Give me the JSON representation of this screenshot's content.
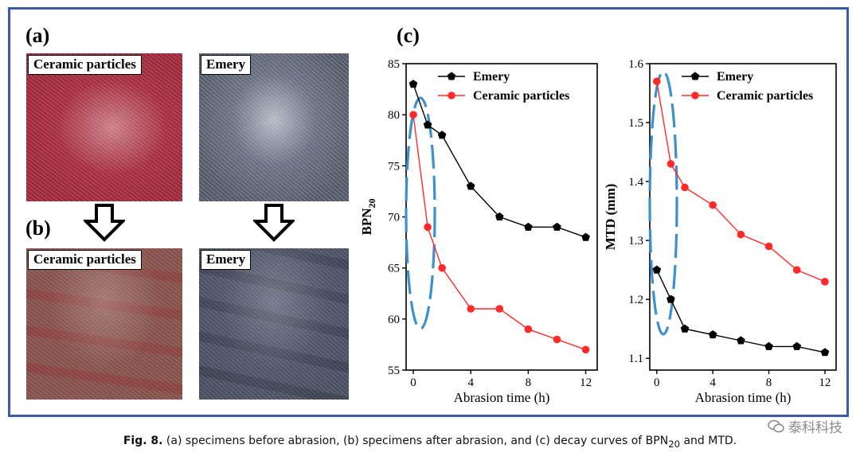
{
  "panels": {
    "a_label": "(a)",
    "b_label": "(b)",
    "c_label": "(c)"
  },
  "photos": {
    "before_ceramic_label": "Ceramic particles",
    "before_emery_label": "Emery",
    "after_ceramic_label": "Ceramic particles",
    "after_emery_label": "Emery"
  },
  "colors": {
    "frame": "#3b5aa8",
    "emery_series": "#000000",
    "ceramic_series": "#ff2a2a",
    "ellipse": "#3d8fd0"
  },
  "caption": {
    "fig": "Fig. 8.",
    "text_before": " (a) specimens before abrasion, (b) specimens after abrasion, and (c) decay curves of BPN",
    "sub": "20",
    "text_after": " and MTD."
  },
  "watermark": "泰科科技",
  "chart_data": [
    {
      "type": "line",
      "xlabel": "Abrasion time (h)",
      "ylabel": "BPN",
      "ylabel_sub": "20",
      "xlim": [
        -0.5,
        12.8
      ],
      "ylim": [
        55,
        85
      ],
      "xticks": [
        0,
        4,
        8,
        12
      ],
      "yticks": [
        55,
        60,
        65,
        70,
        75,
        80,
        85
      ],
      "legend_position": "top-right",
      "series": [
        {
          "name": "Emery",
          "x": [
            0,
            1,
            2,
            4,
            6,
            8,
            10,
            12
          ],
          "y": [
            83,
            79,
            78,
            73,
            70,
            69,
            69,
            68
          ]
        },
        {
          "name": "Ceramic particles",
          "x": [
            0,
            1,
            2,
            4,
            6,
            8,
            10,
            12
          ],
          "y": [
            80,
            69,
            65,
            61,
            61,
            59,
            58,
            57
          ]
        }
      ]
    },
    {
      "type": "line",
      "xlabel": "Abrasion time (h)",
      "ylabel": "MTD (mm)",
      "xlim": [
        -0.5,
        12.8
      ],
      "ylim": [
        1.08,
        1.6
      ],
      "xticks": [
        0,
        4,
        8,
        12
      ],
      "yticks": [
        1.1,
        1.2,
        1.3,
        1.4,
        1.5,
        1.6
      ],
      "legend_position": "top-right",
      "series": [
        {
          "name": "Emery",
          "x": [
            0,
            1,
            2,
            4,
            6,
            8,
            10,
            12
          ],
          "y": [
            1.25,
            1.2,
            1.15,
            1.14,
            1.13,
            1.12,
            1.12,
            1.11
          ]
        },
        {
          "name": "Ceramic particles",
          "x": [
            0,
            1,
            2,
            4,
            6,
            8,
            10,
            12
          ],
          "y": [
            1.57,
            1.43,
            1.39,
            1.36,
            1.31,
            1.29,
            1.25,
            1.23
          ]
        }
      ]
    }
  ]
}
